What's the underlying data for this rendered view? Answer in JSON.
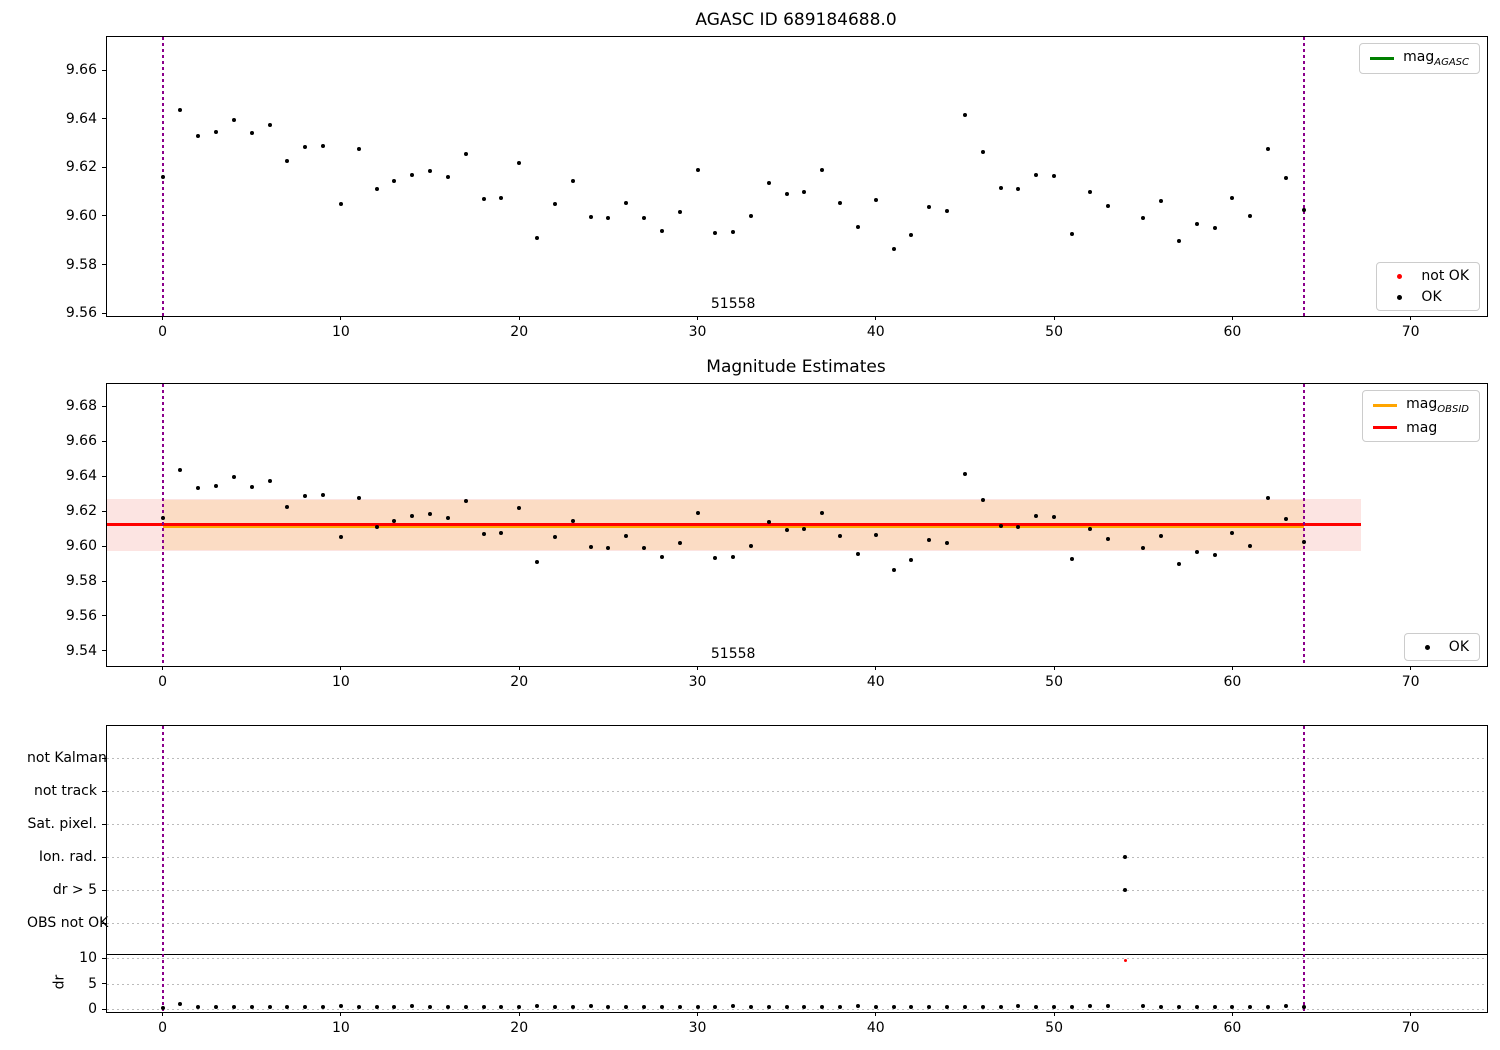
{
  "figure": {
    "background": "#ffffff"
  },
  "colors": {
    "boundary_purple": "#8B008B",
    "legend_green": "#008000",
    "mag_obsid_orange": "#FFA500",
    "mag_red": "#FF0000",
    "ok_black": "#000000",
    "not_ok_red": "#FF0000",
    "band_orange": "#FBDCC4",
    "band_pink": "#FCE4E2",
    "grid_gray": "#BBBBBB"
  },
  "chart_data": [
    {
      "type": "scatter",
      "title": "AGASC ID 689184688.0",
      "xlim": [
        -3.12,
        74.28
      ],
      "ylim": [
        9.5588,
        9.6737
      ],
      "x_ticks": [
        0,
        10,
        20,
        30,
        40,
        50,
        60,
        70
      ],
      "y_ticks": [
        9.66,
        9.64,
        9.62,
        9.6,
        9.58,
        9.56
      ],
      "y_tick_labels": [
        "9.66",
        "9.64",
        "9.62",
        "9.60",
        "9.58",
        "9.56"
      ],
      "vlines": [
        0,
        64
      ],
      "annotation": {
        "text": "51558",
        "x": 32
      },
      "points": {
        "t": [
          0,
          1,
          2,
          3,
          4,
          5,
          6,
          7,
          8,
          9,
          10,
          11,
          12,
          13,
          14,
          15,
          16,
          17,
          18,
          19,
          20,
          21,
          22,
          23,
          24,
          25,
          26,
          27,
          28,
          29,
          30,
          31,
          32,
          33,
          34,
          35,
          36,
          37,
          38,
          39,
          40,
          41,
          42,
          43,
          44,
          45,
          46,
          47,
          48,
          49,
          50,
          51,
          52,
          53,
          55,
          56,
          57,
          58,
          59,
          60,
          61,
          62,
          63,
          64
        ],
        "mag": [
          9.616,
          9.6435,
          9.633,
          9.6345,
          9.6395,
          9.634,
          9.6375,
          9.6225,
          9.6285,
          9.629,
          9.605,
          9.6275,
          9.611,
          9.6145,
          9.617,
          9.6185,
          9.616,
          9.6255,
          9.607,
          9.6075,
          9.622,
          9.591,
          9.605,
          9.6145,
          9.5995,
          9.599,
          9.6055,
          9.599,
          9.594,
          9.6015,
          9.619,
          9.593,
          9.5935,
          9.6,
          9.6135,
          9.609,
          9.61,
          9.619,
          9.6055,
          9.5955,
          9.6065,
          9.5865,
          9.592,
          9.6035,
          9.602,
          9.6415,
          9.6265,
          9.6115,
          9.611,
          9.617,
          9.6165,
          9.5925,
          9.61,
          9.604,
          9.599,
          9.606,
          9.5895,
          9.5965,
          9.595,
          9.6075,
          9.6,
          9.6275,
          9.6155,
          9.6025
        ]
      },
      "legend_top": {
        "items": [
          {
            "swatch": "line",
            "color": "#008000",
            "label_pre": "mag",
            "label_sub": "AGASC"
          }
        ]
      },
      "legend_bottom": {
        "items": [
          {
            "swatch": "dot",
            "color": "#FF0000",
            "label": "not OK"
          },
          {
            "swatch": "dot",
            "color": "#000000",
            "label": "OK"
          }
        ]
      }
    },
    {
      "type": "scatter",
      "title": "Magnitude Estimates",
      "xlim": [
        -3.12,
        74.28
      ],
      "ylim": [
        9.5314,
        9.6927
      ],
      "x_ticks": [
        0,
        10,
        20,
        30,
        40,
        50,
        60,
        70
      ],
      "y_ticks": [
        9.68,
        9.66,
        9.64,
        9.62,
        9.6,
        9.58,
        9.56,
        9.54
      ],
      "y_tick_labels": [
        "9.68",
        "9.66",
        "9.64",
        "9.62",
        "9.60",
        "9.58",
        "9.56",
        "9.54"
      ],
      "vlines": [
        0,
        64
      ],
      "annotation": {
        "text": "51558",
        "x": 32
      },
      "same_points_as": 0,
      "band_pink": {
        "x0": -3.12,
        "x1": 67.2,
        "mag_lo": 9.597,
        "mag_hi": 9.627,
        "color": "#FCE4E2"
      },
      "band_orange": {
        "x0": 0,
        "x1": 64,
        "mag_lo": 9.598,
        "mag_hi": 9.6265,
        "color": "#FBDCC4"
      },
      "mag_obsid_line": {
        "mag": 9.6115,
        "x0": 0,
        "x1": 64,
        "color": "#FFA500"
      },
      "mag_line": {
        "mag": 9.6125,
        "x0": -3.12,
        "x1": 67.2,
        "color": "#FF0000"
      },
      "legend_top": {
        "items": [
          {
            "swatch": "line",
            "color": "#FFA500",
            "label_pre": "mag",
            "label_sub": "OBSID"
          },
          {
            "swatch": "line",
            "color": "#FF0000",
            "label_pre": "mag",
            "label_sub": ""
          }
        ]
      },
      "legend_bottom": {
        "items": [
          {
            "swatch": "dot",
            "color": "#000000",
            "label": "OK"
          }
        ]
      }
    },
    {
      "type": "flags",
      "xlim": [
        -3.12,
        74.28
      ],
      "x_ticks": [
        0,
        10,
        20,
        30,
        40,
        50,
        60,
        70
      ],
      "categories": [
        "not Kalman",
        "not track",
        "Sat. pixel.",
        "Ion. rad.",
        "dr > 5",
        "OBS not OK"
      ],
      "dr_ticks": [
        10,
        5,
        0
      ],
      "dr_tick_labels": [
        "10",
        "5",
        "0"
      ],
      "ylabel": "dr",
      "vlines": [
        0,
        64
      ],
      "flag_points": [
        {
          "t": 54,
          "row": "Ion. rad."
        },
        {
          "t": 54,
          "row": "dr > 5"
        }
      ],
      "not_ok_point": {
        "t": 54,
        "dr": 9.6
      },
      "dr_points": {
        "t": [
          0,
          1,
          2,
          3,
          4,
          5,
          6,
          7,
          8,
          9,
          10,
          11,
          12,
          13,
          14,
          15,
          16,
          17,
          18,
          19,
          20,
          21,
          22,
          23,
          24,
          25,
          26,
          27,
          28,
          29,
          30,
          31,
          32,
          33,
          34,
          35,
          36,
          37,
          38,
          39,
          40,
          41,
          42,
          43,
          44,
          45,
          46,
          47,
          48,
          49,
          50,
          51,
          52,
          53,
          55,
          56,
          57,
          58,
          59,
          60,
          61,
          62,
          63,
          64
        ],
        "dr": [
          0.25,
          0.9,
          0.35,
          0.4,
          0.3,
          0.4,
          0.3,
          0.45,
          0.4,
          0.3,
          0.5,
          0.35,
          0.45,
          0.4,
          0.5,
          0.3,
          0.4,
          0.35,
          0.45,
          0.4,
          0.3,
          0.5,
          0.4,
          0.3,
          0.55,
          0.4,
          0.45,
          0.3,
          0.4,
          0.35,
          0.45,
          0.4,
          0.5,
          0.35,
          0.4,
          0.45,
          0.3,
          0.4,
          0.35,
          0.5,
          0.4,
          0.3,
          0.45,
          0.4,
          0.3,
          0.4,
          0.45,
          0.35,
          0.5,
          0.4,
          0.35,
          0.45,
          0.55,
          0.6,
          0.5,
          0.35,
          0.4,
          0.3,
          0.45,
          0.4,
          0.35,
          0.4,
          0.55,
          0.3
        ]
      }
    }
  ]
}
